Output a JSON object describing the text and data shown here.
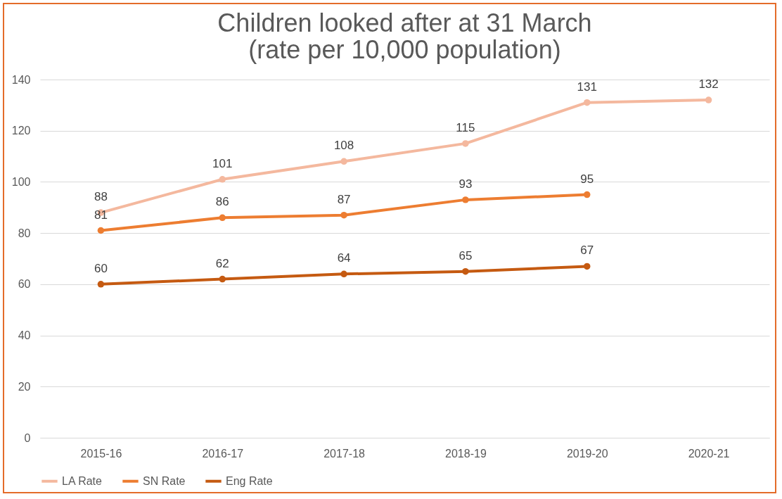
{
  "chart_data": {
    "type": "line",
    "title": "Children looked after at 31 March\n(rate per 10,000 population)",
    "categories": [
      "2015-16",
      "2016-17",
      "2017-18",
      "2018-19",
      "2019-20",
      "2020-21"
    ],
    "series": [
      {
        "name": "LA Rate",
        "color": "#f4b89e",
        "values": [
          88,
          101,
          108,
          115,
          131,
          132
        ]
      },
      {
        "name": "SN Rate",
        "color": "#ed7d31",
        "values": [
          81,
          86,
          87,
          93,
          95,
          null
        ]
      },
      {
        "name": "Eng Rate",
        "color": "#c55a11",
        "values": [
          60,
          62,
          64,
          65,
          67,
          null
        ]
      }
    ],
    "ylim": [
      0,
      140
    ],
    "yticks": [
      0,
      20,
      40,
      60,
      80,
      100,
      120,
      140
    ],
    "grid": "y",
    "legend": "bottom",
    "marker": "circle",
    "line_style": "solid",
    "data_labels": true
  }
}
